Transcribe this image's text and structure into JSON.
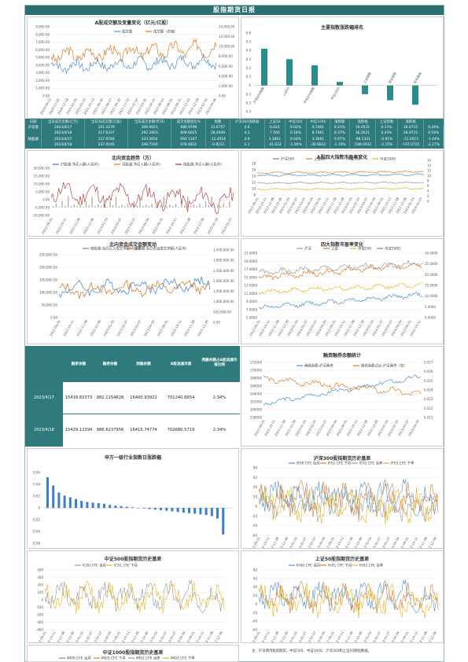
{
  "header": {
    "title": "股指期货日报"
  },
  "panels": {
    "turnover": {
      "title": "A股成交额及变量变化（亿元/亿股）",
      "legend": [
        "成交量",
        "成交额（右轴）"
      ],
      "yleft": [
        "9,000.00",
        "8,000.00",
        "7,000.00",
        "6,000.00",
        "5,000.00",
        "4,000.00",
        "3,000.00",
        "2,000.00",
        "1,000.00",
        "0.00"
      ],
      "yright": [
        "14,000.00",
        "12,000.00",
        "10,000.00",
        "8,000.00",
        "6,000.00",
        "4,000.00",
        "2,000.00",
        "0.00"
      ],
      "xdates": [
        "2020-09-15",
        "2020-11-02",
        "2020-12-18",
        "2021-02-05",
        "2021-03-25",
        "2021-05-13",
        "2021-06-30",
        "2021-08-17",
        "2021-09-30",
        "2021-11-22",
        "2022-01-10",
        "2022-03-02",
        "2022-04-21",
        "2022-06-14",
        "2022-08-02",
        "2022-09-21",
        "2022-11-10",
        "2022-12-29",
        "2023-02-16",
        "2023-04-06"
      ]
    },
    "index_rank": {
      "title": "主要指数涨跌幅排名",
      "yticks": [
        "0.6",
        "0.5",
        "0.4",
        "0.3",
        "0.2",
        "0.1",
        "0",
        "-0.1",
        "-0.2",
        "-0.3"
      ],
      "categories": [
        "沪深300指数",
        "上证50",
        "中证500指数",
        "中证1000",
        "上证指数",
        "深证成指",
        "创业板指"
      ]
    },
    "northbound": {
      "title": "北向资金趋势（万）",
      "legend": [
        "沪股通:净买入额(人民币)",
        "深股通:净买入额(人民币)",
        "陆股通:净买入额(人民币)"
      ],
      "yticks": [
        "20,000.00",
        "15,000.00",
        "10,000.00",
        "5,000.00",
        "0.00",
        "-5,000.00",
        "-10,000.00"
      ]
    },
    "valuation": {
      "title": "A股四大指数市盈率变化",
      "legend": [
        "沪深300",
        "上证50",
        "中证500",
        "中证1000"
      ],
      "yleft": [
        "18",
        "16",
        "14",
        "12",
        "10",
        "8"
      ],
      "yright": [
        "16",
        "14",
        "12",
        "10",
        "8",
        "6",
        "4",
        "2",
        "0"
      ]
    },
    "north_turnover": {
      "title": "北向资金成交金额变动",
      "legend": [
        "陆股通:当日买入成交净额(人民币)",
        "陆股通:当日卖出成交净额(人民币)"
      ],
      "yleft": [
        "250,000.00",
        "200,000.00",
        "150,000.00",
        "100,000.00",
        "50,000.00",
        "0.00"
      ],
      "yright": [
        "3,500,000.00",
        "3,000,000.00",
        "2,500,000.00",
        "2,000,000.00",
        "1,500,000.00",
        "1,000,000.00",
        "500,000.00",
        "0.00"
      ]
    },
    "industry_pe": {
      "title": "四大指数市盈率变化",
      "legend": [
        "沪深",
        "上证",
        "中证500",
        "中证1000"
      ],
      "yleft": [
        "21.0000",
        "19.0000",
        "17.0000",
        "15.0000",
        "13.0000",
        "11.0000",
        "9.0000",
        "7.0000",
        "5.0000"
      ],
      "yright": [
        "30.0000",
        "25.0000",
        "20.0000",
        "15.0000",
        "10.0000",
        "5.0000",
        "0.0000"
      ]
    },
    "margin": {
      "title": "融资融券余额统计",
      "legend": [
        "两融余额:沪深两市",
        "融资余额占比:沪深两市（右）"
      ],
      "yleft": [
        "172000",
        "170000",
        "168000",
        "166000",
        "164000",
        "162000",
        "160000",
        "158000"
      ],
      "yright": [
        "0.027",
        "0.026",
        "0.025",
        "0.024",
        "0.023",
        "0.022",
        "0.021"
      ]
    },
    "sw_industry": {
      "title": "申万一级行业指数日涨跌幅",
      "yticks": [
        "0.06",
        "0.04",
        "0.02",
        "0",
        "-0.02",
        "-0.04",
        "-0.06"
      ]
    },
    "if_basis": {
      "title": "沪深300股指期货历史基差",
      "legend": [
        "IF00.CFE 当月",
        "IF01.CFE 下月",
        "IF02.CFE 当季",
        "IF03.CFE 下季"
      ],
      "yticks": [
        "80",
        "60",
        "40",
        "20",
        "0",
        "-20",
        "-40",
        "-60"
      ]
    },
    "ic_basis": {
      "title": "中证500股指期货历史基差",
      "legend": [
        "IC00.CFE 当月",
        "IC01.CFE 下月"
      ],
      "yticks": [
        "400",
        "300",
        "200",
        "100",
        "0",
        "-100",
        "-200",
        "-300",
        "-400"
      ]
    },
    "ih_basis": {
      "title": "上证50股指期货历史基差",
      "legend": [
        "IH00.CFE 当月",
        "IH01.CFE 下月",
        "IH02.CFE 当季"
      ],
      "yticks": [
        "80",
        "60",
        "40",
        "20",
        "0",
        "-20",
        "-40",
        "-60"
      ]
    },
    "im_basis": {
      "title": "中证1000股指期货历史基差",
      "legend": [
        "IM00.CFE 当月",
        "IM01.CFE 下月",
        "IM02.CFE 当季",
        "IM03.CFE 下季"
      ]
    }
  },
  "table": {
    "headers": [
      "日期",
      "当日成交金额(亿元)",
      "当日总成交量(亿股)",
      "当日成交金额(昨日)",
      "成交金额变化%",
      "指数",
      "沪深300涨跌幅",
      "上证50",
      "中证500",
      "中证1000",
      "涨跌额",
      "涨跌幅",
      "上证指数",
      "涨跌幅"
    ],
    "rows": [
      [
        "沪深港",
        "2023/4/17",
        "241.2279",
        "309.6021",
        "680.9799",
        "31.6757",
        "4.6",
        "0.622",
        "0.02%",
        "0.7461",
        "0.23%",
        "16.0531",
        "0.17%",
        "16.0715",
        "0.24%"
      ],
      [
        "",
        "2023/4/18",
        "217.6337",
        "292.1603",
        "609.6025",
        "28.4649",
        "4.3",
        "7.560",
        "0.18%",
        "8.7461",
        "0.37%",
        "36.2621",
        "0.43%",
        "26.9715",
        "0.54%"
      ],
      [
        "陆股通",
        "2023/4/17",
        "227.8784",
        "323.2654",
        "692.1167",
        "-12.4554",
        "4.0",
        "3.3661",
        "0.04%",
        "3.3661",
        "0.07%",
        "-68.1331",
        "-0.91%",
        "-72.2013",
        "-1.04%"
      ],
      [
        "",
        "2023/4/18",
        "237.9165",
        "349.7166",
        "678.6831",
        "-0.8231",
        "5.1",
        "-41.632",
        "-1.00%",
        "-30.6832",
        "-1.10%",
        "-188.6931",
        "-2.15%",
        "-197.0715",
        "-2.27%"
      ]
    ]
  },
  "value_table": {
    "headers": [
      "融资余额",
      "融券余额",
      "两融余额",
      "A股流通市值",
      "两融余额占A股流通市值比例"
    ],
    "rows": [
      {
        "date": "2023/4/17",
        "values": [
          "15418.82373",
          "982.1154828",
          "16400.93922",
          "701240.6654",
          "2.34%"
        ]
      },
      {
        "date": "2023/4/18",
        "values": [
          "15429.12394",
          "986.6237956",
          "16415.74774",
          "702680.5719",
          "2.34%"
        ]
      }
    ]
  },
  "footer_text": "注：沪深两市股指期货，中证500、中证1000、沪深300和上证50期指数据。",
  "chart_data": [
    {
      "type": "line",
      "title": "A股成交额及变量变化（亿元/亿股）",
      "series": [
        {
          "name": "成交量",
          "values": [
            6500,
            5200,
            7100,
            6200,
            5800,
            4600,
            5400,
            7200,
            6100,
            5300,
            4800,
            6900,
            7300,
            5600,
            5000,
            4900,
            6200,
            6800,
            7100,
            6400
          ]
        },
        {
          "name": "成交额（右轴）",
          "values": [
            8500,
            7400,
            10800,
            9200,
            8600,
            6900,
            8000,
            11400,
            9400,
            8100,
            7600,
            10200,
            11600,
            8600,
            7500,
            7400,
            9100,
            10400,
            11900,
            9800
          ]
        }
      ],
      "ylim": [
        0,
        9000
      ],
      "y2lim": [
        0,
        14000
      ]
    },
    {
      "type": "bar",
      "title": "主要指数涨跌幅排名",
      "categories": [
        "沪深300指数",
        "上证50",
        "中证500指数",
        "中证1000",
        "上证指数",
        "深证成指",
        "创业板指"
      ],
      "values": [
        0.42,
        0.3,
        0.23,
        0.04,
        -0.1,
        -0.17,
        -0.22
      ],
      "ylim": [
        -0.3,
        0.6
      ]
    },
    {
      "type": "bar",
      "title": "申万一级行业指数日涨跌幅",
      "values": [
        0.052,
        0.038,
        0.026,
        0.021,
        0.018,
        0.015,
        0.012,
        0.01,
        0.009,
        0.008,
        0.007,
        0.005,
        0.004,
        0.003,
        0.002,
        0.001,
        0.0,
        -0.001,
        -0.002,
        -0.003,
        -0.004,
        -0.005,
        -0.006,
        -0.007,
        -0.008,
        -0.009,
        -0.01,
        -0.011,
        -0.012,
        -0.014,
        -0.018,
        -0.045
      ],
      "ylim": [
        -0.06,
        0.06
      ]
    }
  ]
}
